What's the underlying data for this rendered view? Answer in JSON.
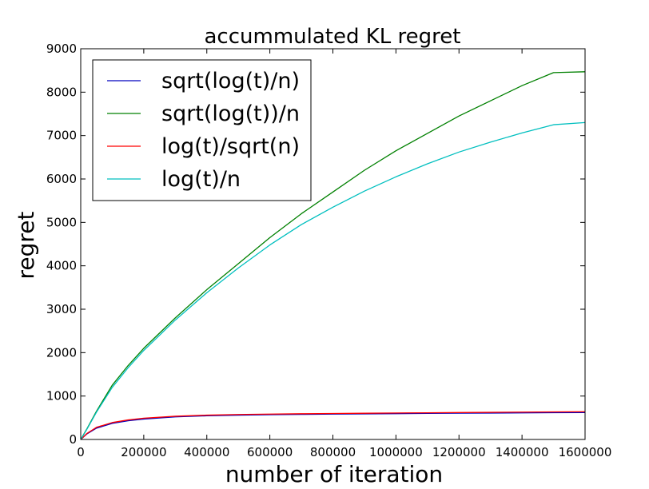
{
  "chart_data": {
    "type": "line",
    "title": "accummulated KL regret",
    "xlabel": "number of iteration",
    "ylabel": "regret",
    "xlim": [
      0,
      1600000
    ],
    "ylim": [
      0,
      9000
    ],
    "xticks": [
      "0",
      "200000",
      "400000",
      "600000",
      "800000",
      "1000000",
      "1200000",
      "1400000",
      "1600000"
    ],
    "yticks": [
      "0",
      "1000",
      "2000",
      "3000",
      "4000",
      "5000",
      "6000",
      "7000",
      "8000",
      "9000"
    ],
    "grid": false,
    "legend_position": "upper-left",
    "x": [
      0,
      20000,
      50000,
      100000,
      150000,
      200000,
      300000,
      400000,
      500000,
      600000,
      700000,
      800000,
      900000,
      1000000,
      1100000,
      1200000,
      1300000,
      1400000,
      1500000,
      1600000
    ],
    "series": [
      {
        "name": "sqrt(log(t)/n)",
        "color": "#0000bf",
        "values": [
          0,
          130,
          260,
          370,
          430,
          470,
          520,
          545,
          560,
          570,
          578,
          585,
          590,
          595,
          600,
          605,
          608,
          612,
          616,
          620
        ]
      },
      {
        "name": "sqrt(log(t))/n",
        "color": "#008000",
        "values": [
          0,
          250,
          650,
          1250,
          1700,
          2100,
          2800,
          3450,
          4050,
          4650,
          5200,
          5700,
          6200,
          6650,
          7050,
          7450,
          7800,
          8150,
          8450,
          8470
        ]
      },
      {
        "name": "log(t)/sqrt(n)",
        "color": "#ff0000",
        "values": [
          0,
          140,
          280,
          390,
          450,
          490,
          535,
          560,
          575,
          585,
          592,
          598,
          604,
          610,
          615,
          620,
          625,
          630,
          635,
          640
        ]
      },
      {
        "name": "log(t)/n",
        "color": "#00bfbf",
        "values": [
          0,
          240,
          630,
          1200,
          1650,
          2050,
          2750,
          3380,
          3950,
          4480,
          4950,
          5350,
          5720,
          6050,
          6350,
          6620,
          6850,
          7060,
          7250,
          7300
        ]
      }
    ]
  }
}
